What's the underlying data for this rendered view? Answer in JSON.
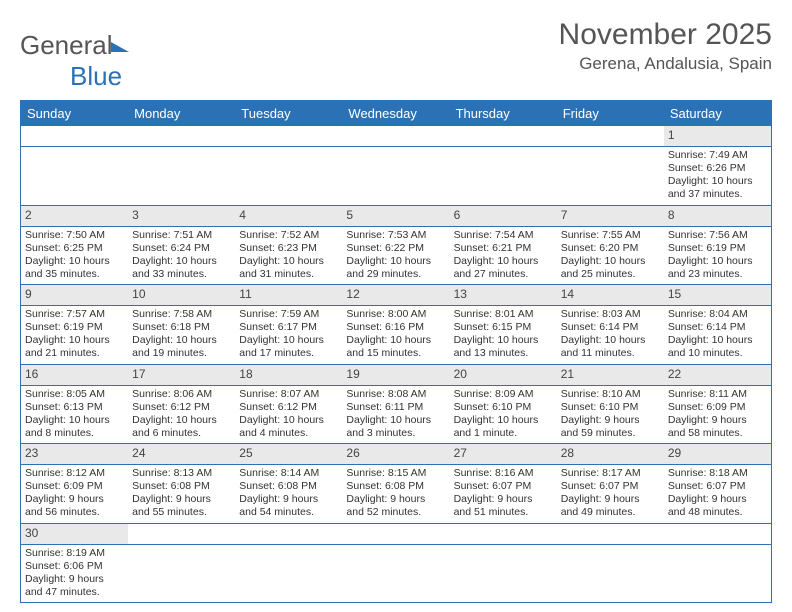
{
  "brand": {
    "part1": "General",
    "part2": "Blue"
  },
  "title": "November 2025",
  "location": "Gerena, Andalusia, Spain",
  "colors": {
    "accent": "#2a72b5",
    "header_text": "#555555",
    "cell_text": "#333333",
    "daynum_bg": "#e9e9e9",
    "background": "#ffffff"
  },
  "layout": {
    "cell_font_size_pt": 8,
    "title_font_size_pt": 22,
    "location_font_size_pt": 13,
    "dayhead_font_size_pt": 10
  },
  "daynames": [
    "Sunday",
    "Monday",
    "Tuesday",
    "Wednesday",
    "Thursday",
    "Friday",
    "Saturday"
  ],
  "weeks": [
    [
      null,
      null,
      null,
      null,
      null,
      null,
      {
        "n": "1",
        "sunrise": "7:49 AM",
        "sunset": "6:26 PM",
        "daylight": "10 hours and 37 minutes."
      }
    ],
    [
      {
        "n": "2",
        "sunrise": "7:50 AM",
        "sunset": "6:25 PM",
        "daylight": "10 hours and 35 minutes."
      },
      {
        "n": "3",
        "sunrise": "7:51 AM",
        "sunset": "6:24 PM",
        "daylight": "10 hours and 33 minutes."
      },
      {
        "n": "4",
        "sunrise": "7:52 AM",
        "sunset": "6:23 PM",
        "daylight": "10 hours and 31 minutes."
      },
      {
        "n": "5",
        "sunrise": "7:53 AM",
        "sunset": "6:22 PM",
        "daylight": "10 hours and 29 minutes."
      },
      {
        "n": "6",
        "sunrise": "7:54 AM",
        "sunset": "6:21 PM",
        "daylight": "10 hours and 27 minutes."
      },
      {
        "n": "7",
        "sunrise": "7:55 AM",
        "sunset": "6:20 PM",
        "daylight": "10 hours and 25 minutes."
      },
      {
        "n": "8",
        "sunrise": "7:56 AM",
        "sunset": "6:19 PM",
        "daylight": "10 hours and 23 minutes."
      }
    ],
    [
      {
        "n": "9",
        "sunrise": "7:57 AM",
        "sunset": "6:19 PM",
        "daylight": "10 hours and 21 minutes."
      },
      {
        "n": "10",
        "sunrise": "7:58 AM",
        "sunset": "6:18 PM",
        "daylight": "10 hours and 19 minutes."
      },
      {
        "n": "11",
        "sunrise": "7:59 AM",
        "sunset": "6:17 PM",
        "daylight": "10 hours and 17 minutes."
      },
      {
        "n": "12",
        "sunrise": "8:00 AM",
        "sunset": "6:16 PM",
        "daylight": "10 hours and 15 minutes."
      },
      {
        "n": "13",
        "sunrise": "8:01 AM",
        "sunset": "6:15 PM",
        "daylight": "10 hours and 13 minutes."
      },
      {
        "n": "14",
        "sunrise": "8:03 AM",
        "sunset": "6:14 PM",
        "daylight": "10 hours and 11 minutes."
      },
      {
        "n": "15",
        "sunrise": "8:04 AM",
        "sunset": "6:14 PM",
        "daylight": "10 hours and 10 minutes."
      }
    ],
    [
      {
        "n": "16",
        "sunrise": "8:05 AM",
        "sunset": "6:13 PM",
        "daylight": "10 hours and 8 minutes."
      },
      {
        "n": "17",
        "sunrise": "8:06 AM",
        "sunset": "6:12 PM",
        "daylight": "10 hours and 6 minutes."
      },
      {
        "n": "18",
        "sunrise": "8:07 AM",
        "sunset": "6:12 PM",
        "daylight": "10 hours and 4 minutes."
      },
      {
        "n": "19",
        "sunrise": "8:08 AM",
        "sunset": "6:11 PM",
        "daylight": "10 hours and 3 minutes."
      },
      {
        "n": "20",
        "sunrise": "8:09 AM",
        "sunset": "6:10 PM",
        "daylight": "10 hours and 1 minute."
      },
      {
        "n": "21",
        "sunrise": "8:10 AM",
        "sunset": "6:10 PM",
        "daylight": "9 hours and 59 minutes."
      },
      {
        "n": "22",
        "sunrise": "8:11 AM",
        "sunset": "6:09 PM",
        "daylight": "9 hours and 58 minutes."
      }
    ],
    [
      {
        "n": "23",
        "sunrise": "8:12 AM",
        "sunset": "6:09 PM",
        "daylight": "9 hours and 56 minutes."
      },
      {
        "n": "24",
        "sunrise": "8:13 AM",
        "sunset": "6:08 PM",
        "daylight": "9 hours and 55 minutes."
      },
      {
        "n": "25",
        "sunrise": "8:14 AM",
        "sunset": "6:08 PM",
        "daylight": "9 hours and 54 minutes."
      },
      {
        "n": "26",
        "sunrise": "8:15 AM",
        "sunset": "6:08 PM",
        "daylight": "9 hours and 52 minutes."
      },
      {
        "n": "27",
        "sunrise": "8:16 AM",
        "sunset": "6:07 PM",
        "daylight": "9 hours and 51 minutes."
      },
      {
        "n": "28",
        "sunrise": "8:17 AM",
        "sunset": "6:07 PM",
        "daylight": "9 hours and 49 minutes."
      },
      {
        "n": "29",
        "sunrise": "8:18 AM",
        "sunset": "6:07 PM",
        "daylight": "9 hours and 48 minutes."
      }
    ],
    [
      {
        "n": "30",
        "sunrise": "8:19 AM",
        "sunset": "6:06 PM",
        "daylight": "9 hours and 47 minutes."
      },
      null,
      null,
      null,
      null,
      null,
      null
    ]
  ],
  "labels": {
    "sunrise": "Sunrise:",
    "sunset": "Sunset:",
    "daylight": "Daylight:"
  }
}
